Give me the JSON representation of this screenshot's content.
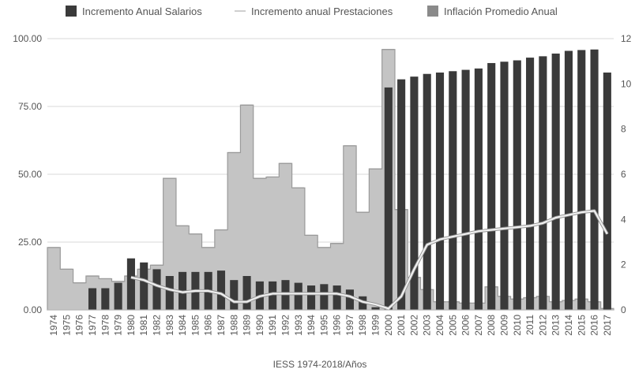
{
  "chart_data": {
    "type": "bar",
    "xlabel": "IESS 1974-2018/Años",
    "categories": [
      "1974",
      "1975",
      "1976",
      "1977",
      "1978",
      "1979",
      "1980",
      "1981",
      "1982",
      "1983",
      "1984",
      "1985",
      "1986",
      "1987",
      "1988",
      "1989",
      "1990",
      "1991",
      "1992",
      "1993",
      "1994",
      "1995",
      "1996",
      "1997",
      "1998",
      "1999",
      "2000",
      "2001",
      "2002",
      "2003",
      "2004",
      "2005",
      "2006",
      "2007",
      "2008",
      "2009",
      "2010",
      "2011",
      "2012",
      "2013",
      "2014",
      "2015",
      "2016",
      "2017"
    ],
    "y_left": {
      "ticks": [
        "0.00",
        "25.00",
        "50.00",
        "75.00",
        "100.00"
      ],
      "lim": [
        0,
        100
      ]
    },
    "y_right": {
      "ticks": [
        "0",
        "2",
        "4",
        "6",
        "8",
        "10",
        "12"
      ],
      "lim": [
        0,
        12
      ]
    },
    "legend_position": "top",
    "series": [
      {
        "name": "Incremento Anual Salarios",
        "kind": "bar",
        "axis": "left",
        "color": "#3a3a3a",
        "values": [
          null,
          null,
          null,
          8,
          8,
          10,
          19,
          17.5,
          15,
          12.5,
          14,
          14,
          14,
          14.5,
          11,
          12.5,
          10.5,
          10.5,
          11,
          10,
          9,
          9.5,
          9,
          7.5,
          5,
          1,
          82,
          85,
          86,
          87,
          87.5,
          88,
          88.5,
          89,
          91,
          91.5,
          92,
          93,
          93.5,
          94.5,
          95.5,
          95.8,
          96,
          87.5
        ]
      },
      {
        "name": "Incremento anual Prestaciones",
        "kind": "line",
        "axis": "left",
        "color": "#f0f0f0",
        "values": [
          null,
          null,
          null,
          null,
          null,
          null,
          12,
          11,
          9,
          7.5,
          6.5,
          7,
          7,
          6,
          3,
          3,
          5,
          6,
          6,
          6,
          6,
          6,
          6,
          5,
          3,
          2,
          0.5,
          5,
          15,
          24,
          26,
          27,
          28,
          29,
          29.5,
          30,
          30.5,
          31,
          32,
          34,
          35,
          36,
          36.5,
          28
        ]
      },
      {
        "name": "Inflación Promedio Anual",
        "kind": "step-area",
        "axis": "left",
        "color": "#c4c4c4",
        "values": [
          23,
          15,
          10,
          12.5,
          11.5,
          10.5,
          12.5,
          15,
          16.5,
          48.5,
          31,
          28,
          23,
          29.5,
          58,
          75.5,
          48.5,
          49,
          54,
          45,
          27.5,
          23,
          24.5,
          60.5,
          36,
          52,
          96,
          37,
          12,
          7.5,
          3,
          3,
          2.5,
          2.5,
          8.5,
          5,
          4,
          4.5,
          5,
          3,
          3.5,
          4,
          3,
          0.5
        ]
      }
    ]
  }
}
